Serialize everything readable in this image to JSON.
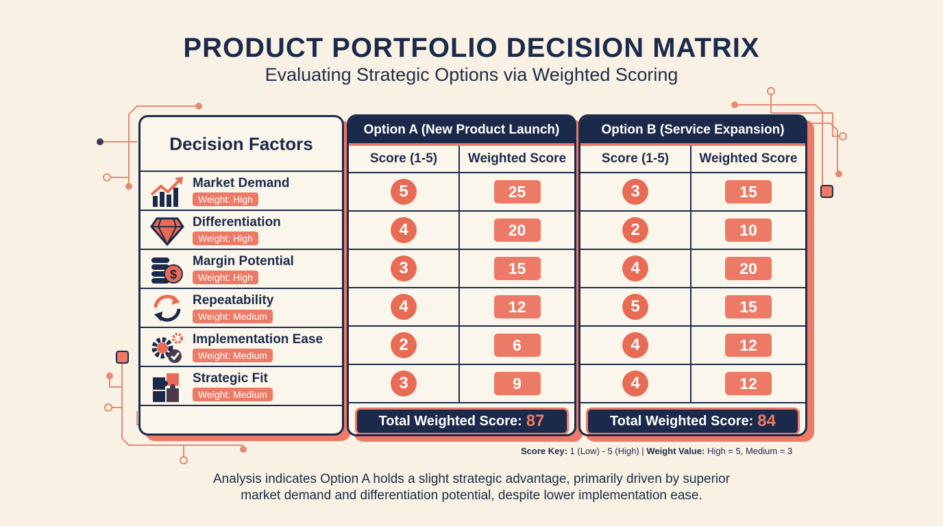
{
  "title": "PRODUCT PORTFOLIO DECISION MATRIX",
  "subtitle": "Evaluating Strategic Options via Weighted Scoring",
  "factors_header": "Decision Factors",
  "factors": [
    {
      "name": "Market Demand",
      "weight": "Weight: High",
      "icon": "growth-chart-icon"
    },
    {
      "name": "Differentiation",
      "weight": "Weight: High",
      "icon": "diamond-icon"
    },
    {
      "name": "Margin Potential",
      "weight": "Weight: High",
      "icon": "coins-dollar-icon"
    },
    {
      "name": "Repeatability",
      "weight": "Weight: Medium",
      "icon": "cycle-arrows-icon"
    },
    {
      "name": "Implementation Ease",
      "weight": "Weight: Medium",
      "icon": "gears-check-icon"
    },
    {
      "name": "Strategic Fit",
      "weight": "Weight: Medium",
      "icon": "puzzle-icon"
    }
  ],
  "options": [
    {
      "name": "Option A (New Product Launch)",
      "col_score": "Score (1-5)",
      "col_weighted": "Weighted Score",
      "scores": [
        "5",
        "4",
        "3",
        "4",
        "2",
        "3"
      ],
      "weighted": [
        "25",
        "20",
        "15",
        "12",
        "6",
        "9"
      ],
      "total_label": "Total Weighted Score:",
      "total": "87"
    },
    {
      "name": "Option B (Service Expansion)",
      "col_score": "Score (1-5)",
      "col_weighted": "Weighted Score",
      "scores": [
        "3",
        "2",
        "4",
        "5",
        "4",
        "4"
      ],
      "weighted": [
        "15",
        "10",
        "20",
        "15",
        "12",
        "12"
      ],
      "total_label": "Total Weighted Score:",
      "total": "84"
    }
  ],
  "key": {
    "score_label": "Score Key:",
    "score_text": "1 (Low) - 5 (High) |",
    "weight_label": "Weight Value:",
    "weight_text": "High = 5, Medium = 3"
  },
  "summary_line1": "Analysis indicates Option A holds a slight strategic advantage, primarily driven by superior",
  "summary_line2": "market demand and differentiation potential, despite lower implementation ease.",
  "colors": {
    "navy": "#1b2a4a",
    "coral": "#ec7a66",
    "background": "#f8f1e4"
  }
}
